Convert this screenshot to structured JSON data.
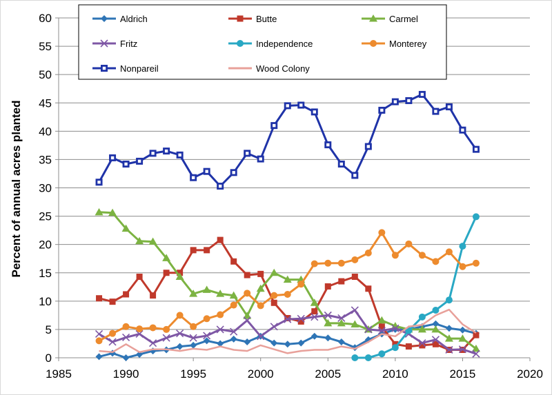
{
  "chart_data": {
    "type": "line",
    "title": "",
    "xlabel": "",
    "ylabel": "Percent of annual acres planted",
    "xlim": [
      1985,
      2020
    ],
    "ylim": [
      0,
      60
    ],
    "xticks": [
      1985,
      1990,
      1995,
      2000,
      2005,
      2010,
      2015,
      2020
    ],
    "yticks": [
      0,
      5,
      10,
      15,
      20,
      25,
      30,
      35,
      40,
      45,
      50,
      55,
      60
    ],
    "grid": "horizontal",
    "legend_position": "top-inside",
    "series": [
      {
        "name": "Aldrich",
        "color": "#2E75B6",
        "marker": "diamond",
        "x": [
          1988,
          1989,
          1990,
          1991,
          1992,
          1993,
          1994,
          1995,
          1996,
          1997,
          1998,
          1999,
          2000,
          2001,
          2002,
          2003,
          2004,
          2005,
          2006,
          2007,
          2008,
          2009,
          2010,
          2011,
          2012,
          2013,
          2014,
          2015,
          2016
        ],
        "y": [
          0.2,
          0.8,
          0.0,
          0.6,
          1.2,
          1.4,
          2.0,
          2.2,
          3.0,
          2.5,
          3.3,
          2.8,
          3.8,
          2.6,
          2.4,
          2.6,
          3.8,
          3.5,
          2.8,
          1.8,
          3.2,
          4.2,
          5.0,
          5.0,
          5.5,
          6.0,
          5.2,
          4.9,
          4.3
        ]
      },
      {
        "name": "Butte",
        "color": "#C0392B",
        "marker": "square",
        "x": [
          1988,
          1989,
          1990,
          1991,
          1992,
          1993,
          1994,
          1995,
          1996,
          1997,
          1998,
          1999,
          2000,
          2001,
          2002,
          2003,
          2004,
          2005,
          2006,
          2007,
          2008,
          2009,
          2010,
          2011,
          2012,
          2013,
          2014,
          2015,
          2016
        ],
        "y": [
          10.5,
          9.9,
          11.2,
          14.3,
          11.0,
          15.0,
          15.0,
          19.0,
          19.0,
          20.8,
          17.0,
          14.6,
          14.8,
          9.7,
          7.0,
          6.4,
          8.2,
          12.6,
          13.5,
          14.3,
          12.2,
          5.5,
          2.4,
          2.0,
          2.2,
          2.4,
          1.4,
          1.4,
          4.0
        ]
      },
      {
        "name": "Carmel",
        "color": "#7CB342",
        "marker": "triangle",
        "x": [
          1988,
          1989,
          1990,
          1991,
          1992,
          1993,
          1994,
          1995,
          1996,
          1997,
          1998,
          1999,
          2000,
          2001,
          2002,
          2003,
          2004,
          2005,
          2006,
          2007,
          2008,
          2009,
          2010,
          2011,
          2012,
          2013,
          2014,
          2015,
          2016
        ],
        "y": [
          25.7,
          25.6,
          22.8,
          20.6,
          20.5,
          17.6,
          14.3,
          11.3,
          12.0,
          11.3,
          11.0,
          7.4,
          12.2,
          15.0,
          13.8,
          13.8,
          9.7,
          6.1,
          6.1,
          5.9,
          5.0,
          6.6,
          5.6,
          5.0,
          5.0,
          5.0,
          3.4,
          3.4,
          1.6
        ]
      },
      {
        "name": "Fritz",
        "color": "#7E57A5",
        "marker": "x",
        "x": [
          1988,
          1989,
          1990,
          1991,
          1992,
          1993,
          1994,
          1995,
          1996,
          1997,
          1998,
          1999,
          2000,
          2001,
          2002,
          2003,
          2004,
          2005,
          2006,
          2007,
          2008,
          2009,
          2010,
          2011,
          2012,
          2013,
          2014,
          2015,
          2016
        ],
        "y": [
          4.2,
          2.8,
          3.6,
          4.2,
          2.6,
          3.5,
          4.3,
          3.5,
          3.9,
          5.0,
          4.6,
          6.6,
          3.8,
          5.5,
          6.8,
          6.9,
          7.2,
          7.5,
          7.0,
          8.4,
          5.0,
          4.8,
          5.2,
          4.2,
          2.6,
          3.2,
          1.4,
          1.5,
          0.7
        ]
      },
      {
        "name": "Independence",
        "color": "#29A8C4",
        "marker": "circle",
        "x": [
          2007,
          2008,
          2009,
          2010,
          2011,
          2012,
          2013,
          2014,
          2015,
          2016
        ],
        "y": [
          0.0,
          0.0,
          0.7,
          1.8,
          4.8,
          7.2,
          8.4,
          10.2,
          19.7,
          24.9
        ]
      },
      {
        "name": "Monterey",
        "color": "#ED8B2E",
        "marker": "circle",
        "x": [
          1988,
          1989,
          1990,
          1991,
          1992,
          1993,
          1994,
          1995,
          1996,
          1997,
          1998,
          1999,
          2000,
          2001,
          2002,
          2003,
          2004,
          2005,
          2006,
          2007,
          2008,
          2009,
          2010,
          2011,
          2012,
          2013,
          2014,
          2015,
          2016
        ],
        "y": [
          3.0,
          4.3,
          5.5,
          5.1,
          5.3,
          5.0,
          7.5,
          5.5,
          6.9,
          7.6,
          9.3,
          11.4,
          9.2,
          11.0,
          11.2,
          13.0,
          16.6,
          16.7,
          16.7,
          17.3,
          18.5,
          22.1,
          18.1,
          20.1,
          18.1,
          17.0,
          18.7,
          16.1,
          16.7
        ]
      },
      {
        "name": "Nonpareil",
        "color": "#1F33A8",
        "marker": "square-open",
        "x": [
          1988,
          1989,
          1990,
          1991,
          1992,
          1993,
          1994,
          1995,
          1996,
          1997,
          1998,
          1999,
          2000,
          2001,
          2002,
          2003,
          2004,
          2005,
          2006,
          2007,
          2008,
          2009,
          2010,
          2011,
          2012,
          2013,
          2014,
          2015,
          2016
        ],
        "y": [
          31.0,
          35.3,
          34.2,
          34.7,
          36.1,
          36.5,
          35.8,
          31.8,
          32.9,
          30.3,
          32.7,
          36.1,
          35.1,
          41.0,
          44.5,
          44.6,
          43.4,
          37.6,
          34.2,
          32.2,
          37.3,
          43.7,
          45.2,
          45.4,
          46.5,
          43.5,
          44.3,
          40.2,
          36.8
        ]
      },
      {
        "name": "Wood Colony",
        "color": "#E8A09A",
        "marker": "none",
        "x": [
          1988,
          1989,
          1990,
          1991,
          1992,
          1993,
          1994,
          1995,
          1996,
          1997,
          1998,
          1999,
          2000,
          2001,
          2002,
          2003,
          2004,
          2005,
          2006,
          2007,
          2008,
          2009,
          2010,
          2011,
          2012,
          2013,
          2014,
          2015,
          2016
        ],
        "y": [
          1.2,
          1.0,
          2.4,
          1.0,
          1.5,
          1.5,
          1.2,
          1.6,
          1.4,
          2.0,
          1.4,
          1.2,
          2.2,
          1.5,
          0.8,
          1.2,
          1.4,
          1.4,
          2.0,
          1.6,
          2.8,
          4.2,
          3.8,
          5.5,
          5.8,
          7.5,
          8.5,
          5.9,
          4.4
        ]
      }
    ]
  }
}
